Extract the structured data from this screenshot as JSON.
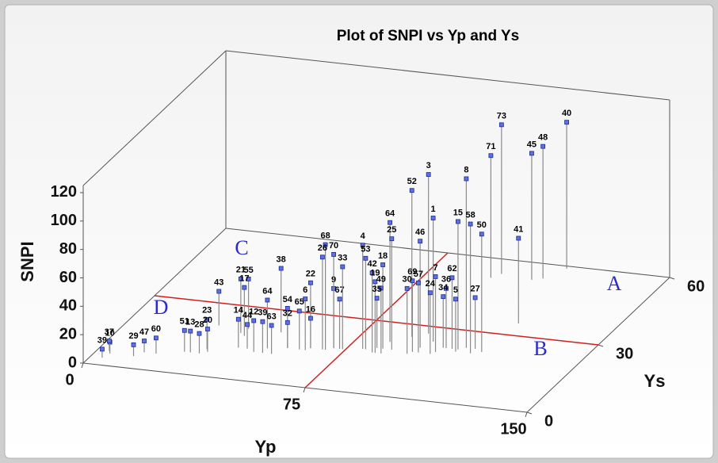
{
  "chart_data": {
    "type": "scatter3d",
    "title": "Plot of SNPI vs Yp and Ys",
    "xlabel": "Yp",
    "ylabel": "Ys",
    "zlabel": "SNPI",
    "xlim": [
      0,
      150
    ],
    "xticks": [
      0,
      75,
      150
    ],
    "ylim": [
      0,
      60
    ],
    "yticks": [
      0,
      30,
      60
    ],
    "zlim": [
      0,
      125
    ],
    "zticks": [
      0,
      20,
      40,
      60,
      80,
      100,
      120
    ],
    "color": "#6070e0",
    "annotations": [
      "A",
      "B",
      "C",
      "D"
    ],
    "labels": [
      "40",
      "48",
      "45",
      "73",
      "71",
      "41",
      "8",
      "3",
      "52",
      "1",
      "64",
      "25",
      "46",
      "15",
      "58",
      "50",
      "4",
      "53",
      "42",
      "18",
      "19",
      "49",
      "35",
      "9",
      "67",
      "33",
      "68",
      "70",
      "26",
      "22",
      "6",
      "38",
      "55",
      "21",
      "17",
      "43",
      "64",
      "54",
      "65",
      "16",
      "32",
      "63",
      "14",
      "12",
      "39",
      "44",
      "23",
      "20",
      "51",
      "13",
      "28",
      "60",
      "47",
      "29",
      "10",
      "37",
      "39",
      "69",
      "30",
      "57",
      "7",
      "62",
      "24",
      "36",
      "34",
      "5",
      "27"
    ],
    "x": [
      116,
      112,
      109,
      98,
      96,
      119,
      111,
      95,
      91,
      99,
      86,
      89,
      97,
      109,
      114,
      117,
      80,
      81,
      84,
      86,
      85,
      87,
      84,
      71,
      73,
      74,
      69,
      71,
      68,
      64,
      63,
      50,
      39,
      38,
      40,
      29,
      51,
      57,
      61,
      64,
      57,
      54,
      42,
      48,
      51,
      45,
      33,
      34,
      27,
      29,
      32,
      19,
      15,
      13,
      5,
      4,
      4,
      96,
      95,
      98,
      103,
      107,
      102,
      105,
      104,
      109,
      114
    ],
    "y": [
      59,
      54,
      53,
      54,
      52,
      35,
      23,
      27,
      25,
      24,
      22,
      19,
      21,
      22,
      21,
      22,
      18,
      18,
      17,
      19,
      17,
      17,
      19,
      17,
      17,
      17,
      16,
      17,
      16,
      16,
      15,
      21,
      21,
      19,
      18,
      21,
      14,
      15,
      15,
      16,
      15,
      12,
      13,
      12,
      12,
      13,
      11,
      10,
      9,
      9,
      9,
      7,
      7,
      5,
      5,
      6,
      3,
      19,
      18,
      19,
      20,
      22,
      19,
      22,
      22,
      21,
      23
    ],
    "z": [
      103,
      93,
      89,
      105,
      86,
      60,
      119,
      112,
      103,
      87,
      84,
      78,
      75,
      90,
      91,
      83,
      73,
      64,
      56,
      59,
      50,
      46,
      35,
      42,
      35,
      58,
      74,
      66,
      65,
      46,
      36,
      45,
      35,
      38,
      34,
      24,
      34,
      28,
      27,
      21,
      18,
      20,
      20,
      22,
      22,
      17,
      21,
      16,
      15,
      15,
      14,
      11,
      8,
      8,
      8,
      7,
      6,
      50,
      46,
      49,
      53,
      50,
      43,
      42,
      36,
      37,
      36
    ]
  }
}
